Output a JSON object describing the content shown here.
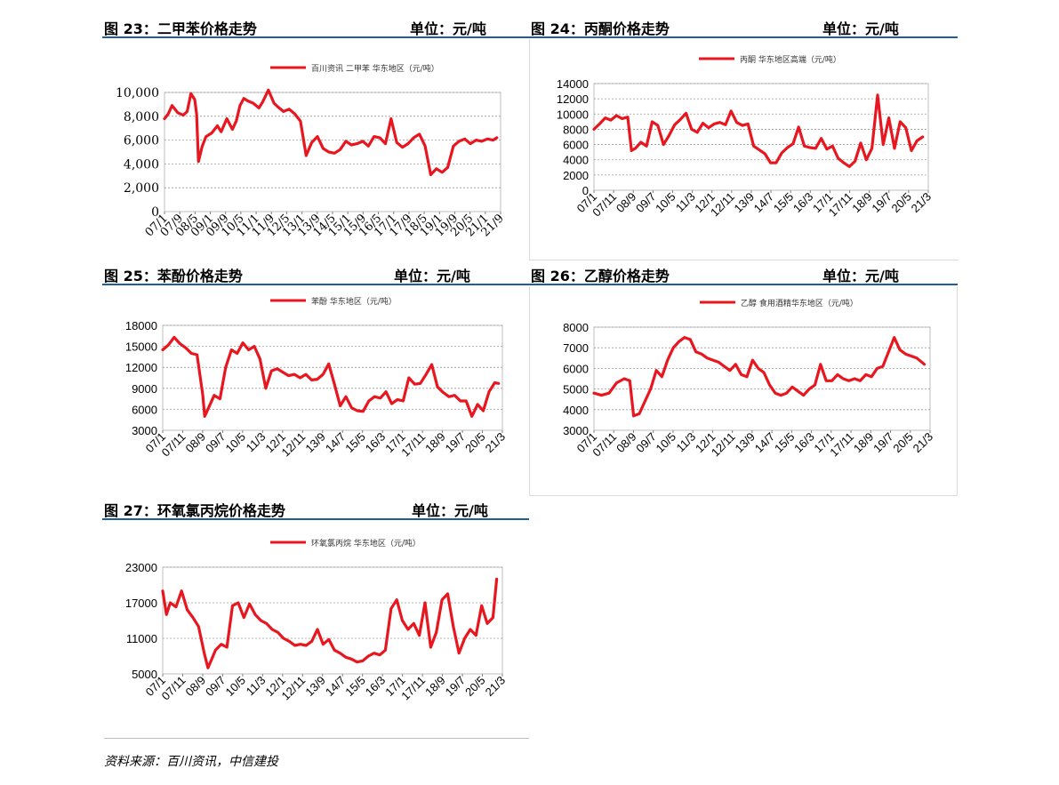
{
  "headers": [
    {
      "title": "图 23：二甲苯价格走势",
      "unit": "单位：元/吨"
    },
    {
      "title": "图 24：丙酮价格走势",
      "unit": "单位：元/吨"
    },
    {
      "title": "图 25：苯酚价格走势",
      "unit": "单位：元/吨"
    },
    {
      "title": "图 26：乙醇价格走势",
      "unit": "单位：元/吨"
    },
    {
      "title": "图 27：环氧氯丙烷价格走势",
      "unit": "单位：元/吨"
    }
  ],
  "source": "资料来源：百川资讯，中信建投",
  "line_color": "#e8171f",
  "header_rule_color": "#1f5e9e",
  "chart_data": [
    {
      "type": "line",
      "legend": "百川资讯 二甲苯 华东地区（元/吨）",
      "ylim": [
        0,
        10000
      ],
      "yticks": [
        "0",
        "2,000",
        "4,000",
        "6,000",
        "8,000",
        "10,000"
      ],
      "xticks": [
        "07/1",
        "07/9",
        "08/5",
        "09/1",
        "09/9",
        "10/5",
        "11/1",
        "11/9",
        "12/5",
        "13/1",
        "13/9",
        "14/5",
        "15/1",
        "15/9",
        "16/5",
        "17/1",
        "17/9",
        "18/5",
        "19/1",
        "19/9",
        "20/5",
        "21/1",
        "21/9"
      ],
      "grid": true,
      "x": [
        0,
        2,
        4,
        7,
        10,
        12,
        14,
        16,
        17,
        18,
        20,
        22,
        25,
        28,
        30,
        33,
        36,
        38,
        40,
        42,
        44,
        47,
        50,
        52,
        55,
        58,
        60,
        63,
        66,
        69,
        72,
        75,
        78,
        81,
        84,
        87,
        90,
        93,
        96,
        99,
        102,
        105,
        108,
        111,
        114,
        117,
        120,
        123,
        126,
        129,
        132,
        135,
        138,
        141,
        144,
        147,
        150,
        153,
        156,
        159,
        162,
        165,
        168,
        171,
        174,
        176
      ],
      "y": [
        7800,
        8200,
        8900,
        8300,
        8100,
        8400,
        9900,
        9400,
        8200,
        4200,
        5500,
        6300,
        6600,
        7200,
        6700,
        7800,
        6900,
        7600,
        8900,
        9500,
        9300,
        9100,
        8700,
        9200,
        10200,
        9100,
        8800,
        8400,
        8600,
        8200,
        7600,
        4700,
        5800,
        6300,
        5300,
        5000,
        4900,
        5200,
        5900,
        5600,
        5700,
        5900,
        5500,
        6300,
        6200,
        5700,
        7800,
        5800,
        5400,
        5700,
        6200,
        6500,
        5500,
        3100,
        3600,
        3300,
        3700,
        5500,
        5900,
        6100,
        5700,
        6000,
        5900,
        6100,
        6000,
        6200
      ]
    },
    {
      "type": "line",
      "legend": "丙酮 华东地区高端（元/吨）",
      "ylim": [
        0,
        14000
      ],
      "yticks": [
        "0",
        "2000",
        "4000",
        "6000",
        "8000",
        "10000",
        "12000",
        "14000"
      ],
      "xticks": [
        "07/1",
        "07/11",
        "08/9",
        "09/7",
        "10/5",
        "11/3",
        "12/1",
        "12/11",
        "13/9",
        "14/7",
        "15/5",
        "16/3",
        "17/1",
        "17/11",
        "18/9",
        "19/7",
        "20/5",
        "21/3"
      ],
      "grid": true,
      "x": [
        0,
        3,
        6,
        9,
        12,
        15,
        18,
        20,
        22,
        25,
        28,
        31,
        34,
        37,
        40,
        43,
        46,
        49,
        52,
        55,
        58,
        61,
        64,
        67,
        70,
        73,
        76,
        79,
        82,
        85,
        88,
        91,
        94,
        97,
        100,
        103,
        106,
        109,
        112,
        115,
        118,
        121,
        124,
        127,
        130,
        133,
        136,
        139,
        142,
        145,
        148,
        151,
        154,
        157,
        160,
        163,
        166,
        169,
        172,
        175
      ],
      "y": [
        8000,
        8700,
        9500,
        9200,
        9800,
        9400,
        9600,
        5200,
        5500,
        6300,
        5800,
        9000,
        8500,
        6000,
        7200,
        8600,
        9300,
        10100,
        8000,
        7600,
        8800,
        8200,
        8700,
        8900,
        8600,
        10400,
        8900,
        8500,
        8700,
        5800,
        5300,
        4800,
        3600,
        3600,
        4900,
        5600,
        6100,
        8300,
        5800,
        5600,
        5500,
        6800,
        5400,
        5800,
        4200,
        3600,
        3100,
        3800,
        6200,
        4000,
        5500,
        12500,
        6000,
        9500,
        5500,
        9000,
        8200,
        5200,
        6500,
        7000
      ]
    },
    {
      "type": "line",
      "legend": "苯酚 华东地区（元/吨）",
      "ylim": [
        3000,
        18000
      ],
      "yticks": [
        "3000",
        "6000",
        "9000",
        "12000",
        "15000",
        "18000"
      ],
      "xticks": [
        "07/1",
        "07/11",
        "08/9",
        "09/7",
        "10/5",
        "11/3",
        "12/1",
        "12/11",
        "13/9",
        "14/7",
        "15/5",
        "16/3",
        "17/1",
        "17/11",
        "18/9",
        "19/7",
        "20/5",
        "21/3"
      ],
      "grid": true,
      "x": [
        0,
        3,
        6,
        9,
        12,
        15,
        18,
        21,
        22,
        24,
        27,
        30,
        33,
        36,
        39,
        42,
        45,
        48,
        51,
        54,
        57,
        60,
        63,
        66,
        69,
        72,
        75,
        78,
        81,
        84,
        87,
        90,
        93,
        96,
        99,
        102,
        105,
        108,
        111,
        114,
        117,
        120,
        123,
        126,
        129,
        132,
        135,
        138,
        141,
        144,
        147,
        150,
        153,
        156,
        159,
        162,
        165,
        168,
        171,
        174,
        176
      ],
      "y": [
        14500,
        15200,
        16300,
        15400,
        14800,
        14000,
        13800,
        8000,
        5000,
        6200,
        8000,
        7500,
        12000,
        14500,
        14000,
        15500,
        14500,
        15000,
        13200,
        9000,
        11500,
        11800,
        11300,
        10800,
        11000,
        10500,
        11000,
        10200,
        10300,
        11000,
        12500,
        9600,
        6500,
        7800,
        6200,
        5800,
        5700,
        7200,
        7800,
        7600,
        8500,
        6800,
        7400,
        7200,
        10500,
        9600,
        9700,
        11000,
        12400,
        9200,
        8400,
        7800,
        8000,
        7200,
        7200,
        5000,
        6700,
        5800,
        8500,
        9800,
        9700
      ]
    },
    {
      "type": "line",
      "legend": "乙醇 食用酒精华东地区（元/吨）",
      "ylim": [
        3000,
        8000
      ],
      "yticks": [
        "3000",
        "4000",
        "5000",
        "6000",
        "7000",
        "8000"
      ],
      "xticks": [
        "07/1",
        "07/11",
        "08/9",
        "09/7",
        "10/5",
        "11/3",
        "12/1",
        "12/11",
        "13/9",
        "14/7",
        "15/5",
        "16/3",
        "17/1",
        "17/11",
        "18/9",
        "19/7",
        "20/5",
        "21/3"
      ],
      "grid": true,
      "x": [
        0,
        4,
        8,
        12,
        16,
        19,
        21,
        24,
        27,
        30,
        33,
        36,
        39,
        42,
        45,
        48,
        51,
        54,
        57,
        60,
        63,
        66,
        69,
        72,
        75,
        78,
        81,
        84,
        87,
        90,
        93,
        96,
        99,
        102,
        105,
        108,
        111,
        114,
        117,
        120,
        123,
        126,
        129,
        132,
        135,
        138,
        141,
        144,
        147,
        150,
        153,
        156,
        159,
        162,
        165,
        168,
        171,
        175
      ],
      "y": [
        4800,
        4700,
        4800,
        5300,
        5500,
        5400,
        3700,
        3800,
        4400,
        5000,
        5900,
        5600,
        6400,
        7000,
        7300,
        7500,
        7400,
        6800,
        6700,
        6500,
        6400,
        6300,
        6100,
        5900,
        6200,
        5700,
        5600,
        6400,
        6000,
        5800,
        5200,
        4800,
        4700,
        4800,
        5100,
        4900,
        4700,
        5000,
        5200,
        6200,
        5400,
        5400,
        5700,
        5500,
        5400,
        5500,
        5400,
        5700,
        5600,
        6000,
        6100,
        6800,
        7500,
        6900,
        6700,
        6600,
        6500,
        6200
      ]
    },
    {
      "type": "line",
      "legend": "环氧氯丙烷 华东地区（元/吨）",
      "ylim": [
        5000,
        23000
      ],
      "yticks": [
        "5000",
        "11000",
        "17000",
        "23000"
      ],
      "xticks": [
        "07/1",
        "07/11",
        "08/9",
        "09/7",
        "10/5",
        "11/3",
        "12/1",
        "12/11",
        "13/9",
        "14/7",
        "15/5",
        "16/3",
        "17/1",
        "17/11",
        "18/9",
        "19/7",
        "20/5",
        "21/3"
      ],
      "grid": true,
      "x": [
        0,
        2,
        4,
        7,
        10,
        13,
        16,
        19,
        22,
        24,
        26,
        28,
        31,
        34,
        37,
        40,
        43,
        46,
        49,
        52,
        55,
        58,
        61,
        64,
        67,
        70,
        73,
        76,
        79,
        82,
        85,
        88,
        91,
        94,
        97,
        100,
        103,
        106,
        109,
        112,
        115,
        118,
        121,
        124,
        127,
        130,
        133,
        136,
        139,
        142,
        145,
        148,
        151,
        154,
        157,
        160,
        163,
        166,
        169,
        172,
        175,
        177
      ],
      "y": [
        19000,
        15000,
        17000,
        16300,
        19000,
        15800,
        14500,
        13000,
        8500,
        6000,
        7500,
        9000,
        10000,
        9500,
        16500,
        17000,
        14500,
        16800,
        15000,
        14000,
        13500,
        12500,
        12000,
        11000,
        10500,
        9800,
        10000,
        9800,
        10500,
        12500,
        10000,
        10800,
        9000,
        8500,
        7800,
        7500,
        7000,
        7200,
        8000,
        8500,
        8200,
        9000,
        16000,
        17500,
        14000,
        12500,
        13500,
        11500,
        17000,
        9500,
        12000,
        17500,
        18500,
        13000,
        8500,
        11000,
        12500,
        11500,
        16500,
        13500,
        14500,
        21000
      ]
    }
  ]
}
